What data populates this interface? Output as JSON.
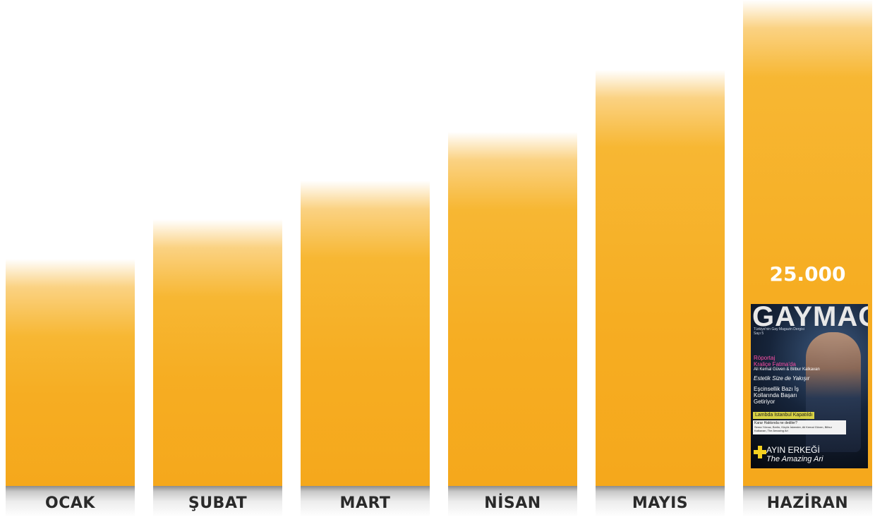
{
  "chart_data": {
    "type": "bar",
    "title": "",
    "xlabel": "",
    "ylabel": "",
    "categories": [
      "OCAK",
      "ŞUBAT",
      "MART",
      "NİSAN",
      "MAYIS",
      "HAZİRAN"
    ],
    "values": [
      11700,
      13700,
      15700,
      18200,
      21400,
      25000
    ],
    "ylim": [
      0,
      25000
    ],
    "data_labels": [
      "",
      "",
      "",
      "",
      "",
      "25.000"
    ],
    "grid": false,
    "colors": {
      "bar": "#f5a81c",
      "value_label": "#ffffff",
      "category_label": "#2a2a2a"
    }
  },
  "magazine_cover": {
    "masthead": "GAYMAG",
    "tagline": "Türkiye'nin Gay Magazin Dergisi",
    "issue": "Sayı 5",
    "line1": "Röportaj",
    "line2": "Kraliçe Fatma'da",
    "line3": "Ali Kemal Güven & Bilbur Kalkavan",
    "line4": "Estetik Size de Yakışır",
    "line5": "Eşcinsellik Bazı İş",
    "line6": "Kollarında Başarı",
    "line7": "Getiriyor",
    "box1": "Lambda İstanbul Kapatıldı",
    "box2": "Karar Hakkında ne dediler?",
    "box3": "Sema Yılmaz, Berlin, Küçük İskender, Ali Kemal Güven, Bilbur Kalkavan, The Amazing Ari",
    "ayin": "AYIN ERKEĞİ",
    "amazing": "The Amazing Ari"
  }
}
